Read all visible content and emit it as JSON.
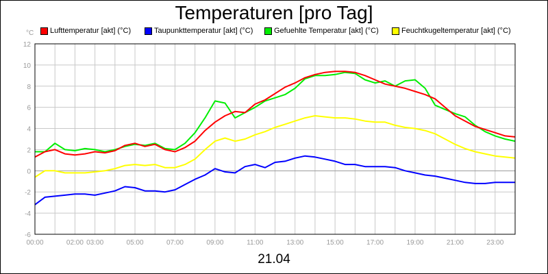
{
  "chart_data": {
    "type": "line",
    "title": "Temperaturen [pro Tag]",
    "y_unit_label": "°C",
    "xlabel": "21.04",
    "ylim": [
      -6,
      12
    ],
    "xlim": [
      0,
      24
    ],
    "grid": true,
    "legend_position": "top",
    "y_ticks": [
      {
        "value": 12,
        "label": "12"
      },
      {
        "value": 10,
        "label": "10"
      },
      {
        "value": 8,
        "label": "8"
      },
      {
        "value": 6,
        "label": "6"
      },
      {
        "value": 4,
        "label": "4"
      },
      {
        "value": 2,
        "label": "2"
      },
      {
        "value": 0,
        "label": "0"
      },
      {
        "value": -2,
        "label": "-2"
      },
      {
        "value": -4,
        "label": "-4"
      },
      {
        "value": -6,
        "label": "-6"
      }
    ],
    "x_ticks": [
      {
        "value": 0,
        "label": "00:00"
      },
      {
        "value": 2,
        "label": "02:00"
      },
      {
        "value": 3,
        "label": "03:00"
      },
      {
        "value": 5,
        "label": "05:00"
      },
      {
        "value": 7,
        "label": "07:00"
      },
      {
        "value": 9,
        "label": "09:00"
      },
      {
        "value": 11,
        "label": "11:00"
      },
      {
        "value": 13,
        "label": "13:00"
      },
      {
        "value": 15,
        "label": "15:00"
      },
      {
        "value": 17,
        "label": "17:00"
      },
      {
        "value": 19,
        "label": "19:00"
      },
      {
        "value": 21,
        "label": "21:00"
      },
      {
        "value": 23,
        "label": "23:00"
      }
    ],
    "series": [
      {
        "name": "Lufttemperatur [akt] (°C)",
        "color": "#ff0000",
        "x": [
          0,
          0.5,
          1,
          1.5,
          2,
          2.5,
          3,
          3.5,
          4,
          4.5,
          5,
          5.5,
          6,
          6.5,
          7,
          7.5,
          8,
          8.5,
          9,
          9.5,
          10,
          10.5,
          11,
          11.5,
          12,
          12.5,
          13,
          13.5,
          14,
          14.5,
          15,
          15.5,
          16,
          16.5,
          17,
          17.5,
          18,
          18.5,
          19,
          19.5,
          20,
          20.5,
          21,
          21.5,
          22,
          22.5,
          23,
          23.5,
          24
        ],
        "values": [
          1.3,
          1.8,
          2.0,
          1.6,
          1.5,
          1.6,
          1.8,
          1.7,
          1.9,
          2.4,
          2.6,
          2.3,
          2.5,
          2.0,
          1.8,
          2.2,
          2.8,
          3.8,
          4.6,
          5.2,
          5.6,
          5.5,
          6.3,
          6.7,
          7.3,
          7.9,
          8.3,
          8.8,
          9.1,
          9.3,
          9.4,
          9.4,
          9.3,
          9.0,
          8.6,
          8.2,
          8.0,
          7.8,
          7.5,
          7.2,
          6.8,
          6.0,
          5.2,
          4.7,
          4.2,
          3.9,
          3.6,
          3.3,
          3.2
        ]
      },
      {
        "name": "Taupunkttemperatur [akt] (°C)",
        "color": "#0000ff",
        "x": [
          0,
          0.5,
          1,
          1.5,
          2,
          2.5,
          3,
          3.5,
          4,
          4.5,
          5,
          5.5,
          6,
          6.5,
          7,
          7.5,
          8,
          8.5,
          9,
          9.5,
          10,
          10.5,
          11,
          11.5,
          12,
          12.5,
          13,
          13.5,
          14,
          14.5,
          15,
          15.5,
          16,
          16.5,
          17,
          17.5,
          18,
          18.5,
          19,
          19.5,
          20,
          20.5,
          21,
          21.5,
          22,
          22.5,
          23,
          23.5,
          24
        ],
        "values": [
          -3.2,
          -2.5,
          -2.4,
          -2.3,
          -2.2,
          -2.2,
          -2.3,
          -2.1,
          -1.9,
          -1.5,
          -1.6,
          -1.9,
          -1.9,
          -2.0,
          -1.8,
          -1.3,
          -0.8,
          -0.4,
          0.2,
          -0.1,
          -0.2,
          0.4,
          0.6,
          0.3,
          0.8,
          0.9,
          1.2,
          1.4,
          1.3,
          1.1,
          0.9,
          0.6,
          0.6,
          0.4,
          0.4,
          0.4,
          0.3,
          0.0,
          -0.2,
          -0.4,
          -0.5,
          -0.7,
          -0.9,
          -1.1,
          -1.2,
          -1.2,
          -1.1,
          -1.1,
          -1.1
        ]
      },
      {
        "name": "Gefuehlte Temperatur [akt] (°C)",
        "color": "#00ee00",
        "x": [
          0,
          0.5,
          1,
          1.5,
          2,
          2.5,
          3,
          3.5,
          4,
          4.5,
          5,
          5.5,
          6,
          6.5,
          7,
          7.5,
          8,
          8.5,
          9,
          9.5,
          10,
          10.5,
          11,
          11.5,
          12,
          12.5,
          13,
          13.5,
          14,
          14.5,
          15,
          15.5,
          16,
          16.5,
          17,
          17.5,
          18,
          18.5,
          19,
          19.5,
          20,
          20.5,
          21,
          21.5,
          22,
          22.5,
          23,
          23.5,
          24
        ],
        "values": [
          1.8,
          1.8,
          2.6,
          2.0,
          1.9,
          2.1,
          2.0,
          1.8,
          2.0,
          2.3,
          2.5,
          2.4,
          2.6,
          2.1,
          2.0,
          2.6,
          3.6,
          5.0,
          6.6,
          6.4,
          5.0,
          5.5,
          6.0,
          6.6,
          6.9,
          7.2,
          7.8,
          8.7,
          9.0,
          9.0,
          9.1,
          9.3,
          9.2,
          8.6,
          8.3,
          8.5,
          8.0,
          8.5,
          8.6,
          7.8,
          6.2,
          5.8,
          5.4,
          5.1,
          4.3,
          3.7,
          3.3,
          3.0,
          2.8
        ]
      },
      {
        "name": "Feuchtkugeltemperatur [akt] (°C)",
        "color": "#ffff00",
        "x": [
          0,
          0.5,
          1,
          1.5,
          2,
          2.5,
          3,
          3.5,
          4,
          4.5,
          5,
          5.5,
          6,
          6.5,
          7,
          7.5,
          8,
          8.5,
          9,
          9.5,
          10,
          10.5,
          11,
          11.5,
          12,
          12.5,
          13,
          13.5,
          14,
          14.5,
          15,
          15.5,
          16,
          16.5,
          17,
          17.5,
          18,
          18.5,
          19,
          19.5,
          20,
          20.5,
          21,
          21.5,
          22,
          22.5,
          23,
          23.5,
          24
        ],
        "values": [
          -0.6,
          0.0,
          0.0,
          -0.2,
          -0.2,
          -0.2,
          -0.1,
          0.0,
          0.2,
          0.5,
          0.6,
          0.5,
          0.6,
          0.3,
          0.3,
          0.6,
          1.1,
          2.0,
          2.8,
          3.1,
          2.8,
          3.0,
          3.4,
          3.7,
          4.1,
          4.4,
          4.7,
          5.0,
          5.2,
          5.1,
          5.0,
          5.0,
          4.9,
          4.7,
          4.6,
          4.6,
          4.3,
          4.1,
          4.0,
          3.8,
          3.5,
          3.0,
          2.5,
          2.1,
          1.8,
          1.6,
          1.4,
          1.3,
          1.2
        ]
      }
    ]
  }
}
